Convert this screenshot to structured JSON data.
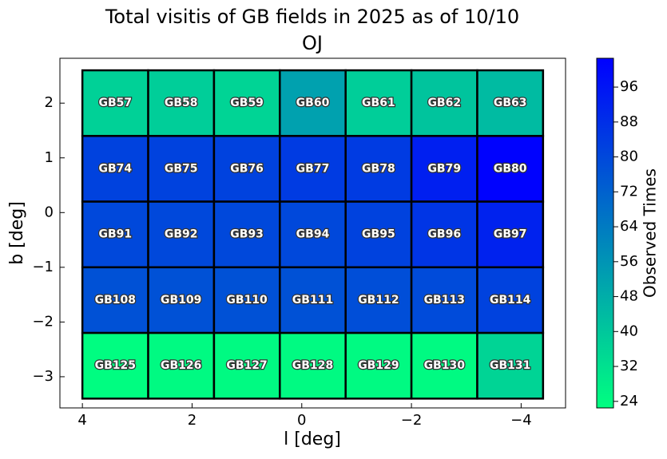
{
  "chart_data": {
    "type": "heatmap",
    "title": "Total visitis of GB fields in 2025 as of 10/10",
    "subtitle": "OJ",
    "x_label": "l [deg]",
    "y_label": "b [deg]",
    "colorbar_label": "Observed Times",
    "x": [
      3.4,
      2.2,
      1.0,
      -0.2,
      -1.4,
      -2.6,
      -3.8
    ],
    "y": [
      2.0,
      0.8,
      -0.4,
      -1.6,
      -2.8
    ],
    "labels": [
      [
        "GB57",
        "GB58",
        "GB59",
        "GB60",
        "GB61",
        "GB62",
        "GB63"
      ],
      [
        "GB74",
        "GB75",
        "GB76",
        "GB77",
        "GB78",
        "GB79",
        "GB80"
      ],
      [
        "GB91",
        "GB92",
        "GB93",
        "GB94",
        "GB95",
        "GB96",
        "GB97"
      ],
      [
        "GB108",
        "GB109",
        "GB110",
        "GB111",
        "GB112",
        "GB113",
        "GB114"
      ],
      [
        "GB125",
        "GB126",
        "GB127",
        "GB128",
        "GB129",
        "GB130",
        "GB131"
      ]
    ],
    "values": [
      [
        37,
        38,
        36,
        52,
        38,
        41,
        44
      ],
      [
        82,
        82,
        82,
        84,
        84,
        93,
        102
      ],
      [
        80,
        80,
        80,
        80,
        82,
        86,
        92
      ],
      [
        77,
        77,
        77,
        77,
        78,
        79,
        82
      ],
      [
        23,
        24,
        24,
        24,
        24,
        24,
        36
      ]
    ],
    "colormap": [
      "#00ff80",
      "#0000ff"
    ],
    "xlim": [
      4.41,
      -4.81
    ],
    "ylim": [
      -3.57,
      2.82
    ],
    "xticks": [
      4,
      2,
      0,
      {
        "value": -2,
        "label": "−2"
      },
      {
        "value": -4,
        "label": "−4"
      }
    ],
    "yticks": [
      2,
      1,
      0,
      {
        "value": -1,
        "label": "−1"
      },
      {
        "value": -2,
        "label": "−2"
      },
      {
        "value": -3,
        "label": "−3"
      }
    ],
    "clim": [
      22.5,
      102.6
    ],
    "cticks": [
      24,
      32,
      40,
      48,
      56,
      64,
      72,
      80,
      88,
      96
    ]
  }
}
